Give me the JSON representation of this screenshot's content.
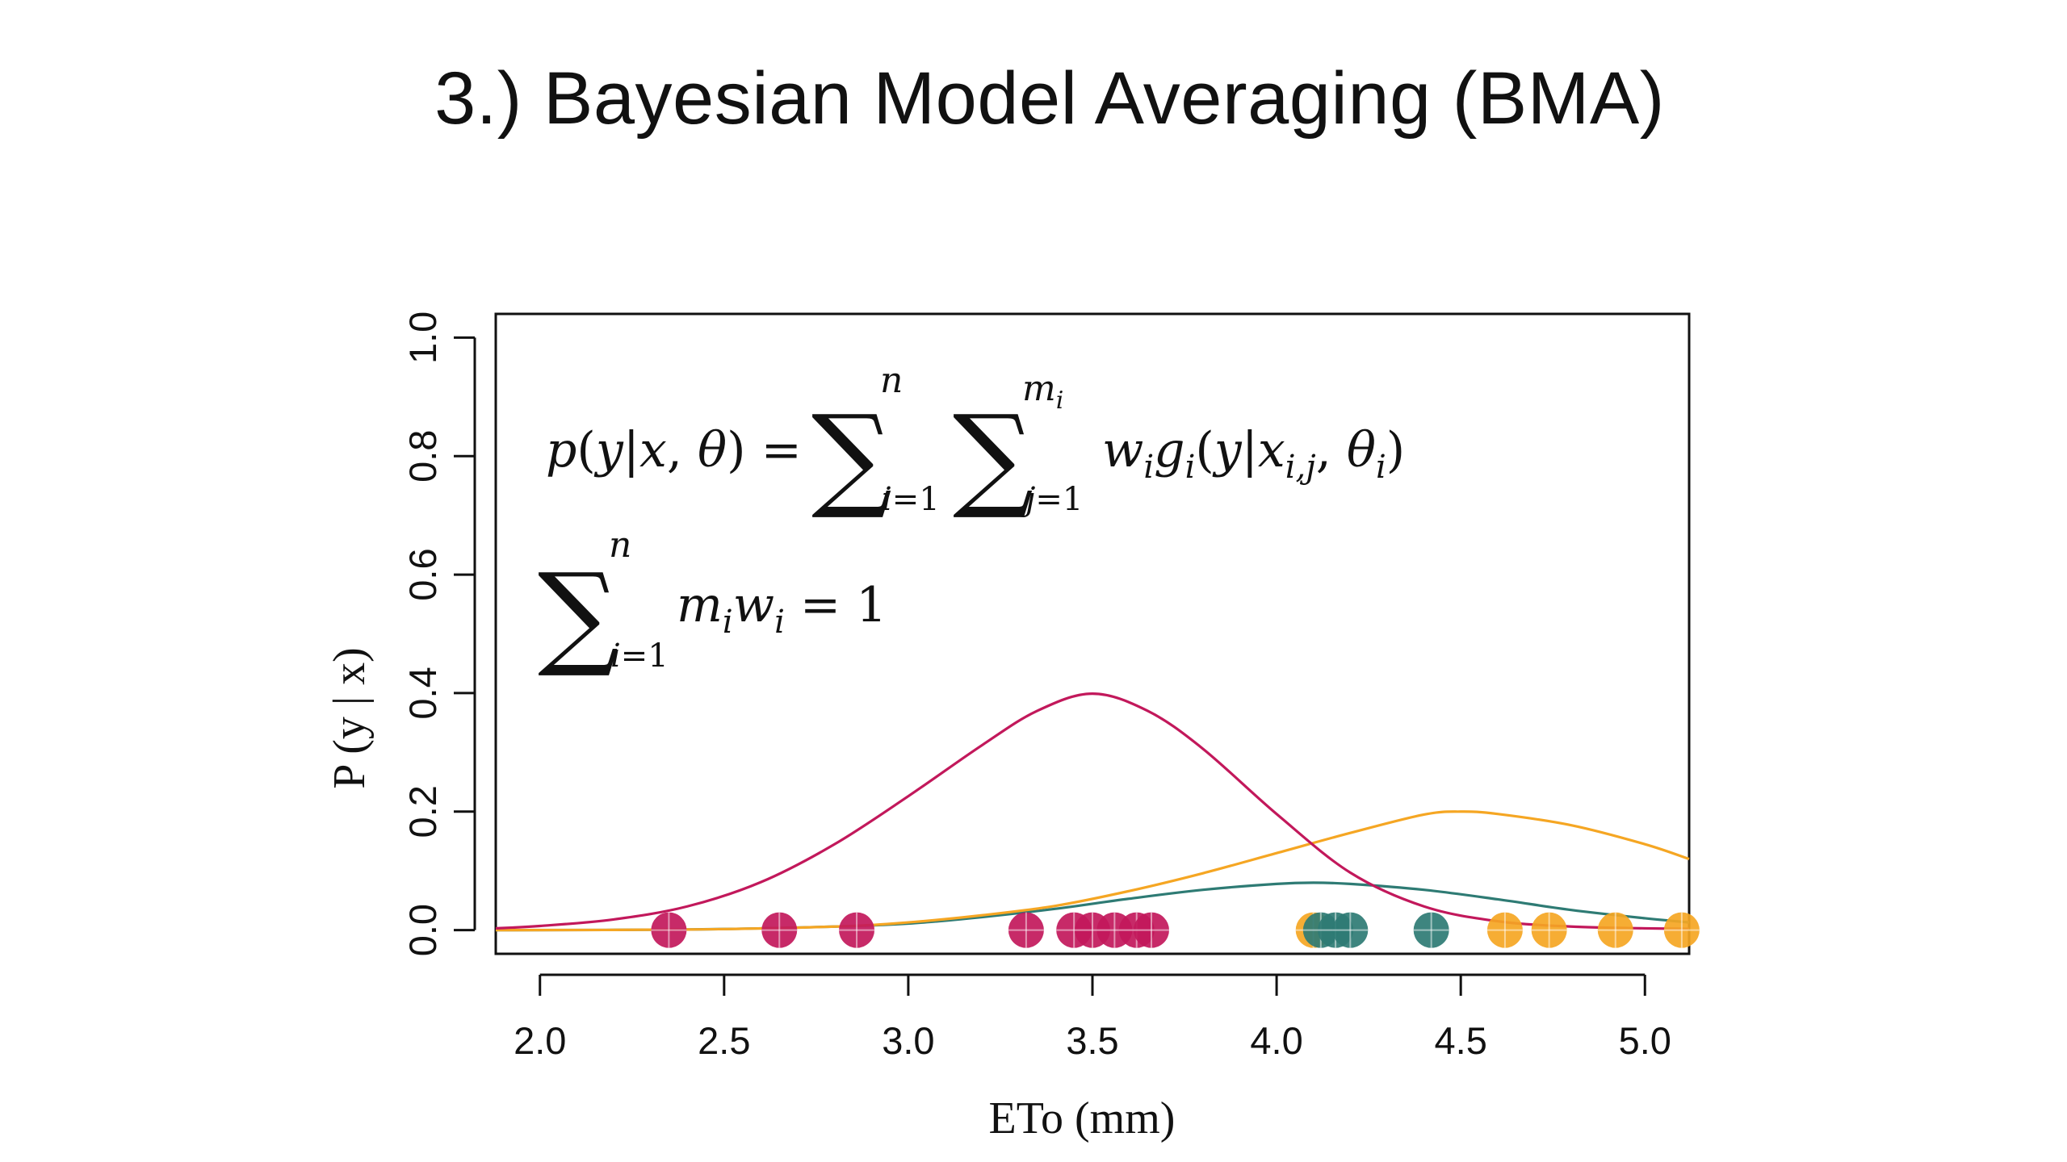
{
  "title": "3.) Bayesian Model Averaging (BMA)",
  "chart_data": {
    "type": "line",
    "xlabel": "ETo (mm)",
    "ylabel": "P (y | x)",
    "xlim": [
      1.88,
      5.12
    ],
    "ylim": [
      -0.04,
      1.04
    ],
    "xticks": [
      "2.0",
      "2.5",
      "3.0",
      "3.5",
      "4.0",
      "4.5",
      "5.0"
    ],
    "yticks": [
      "0.0",
      "0.2",
      "0.4",
      "0.6",
      "0.8",
      "1.0"
    ],
    "grid": false,
    "legend": "none",
    "formula_1": "p(y|x,θ) = Σ_{i=1}^{n} Σ_{j=1}^{m_i} w_i g_i(y|x_{i,j},θ_i)",
    "formula_2": "Σ_{i=1}^{n} m_i w_i = 1",
    "series": [
      {
        "color": "#c2185b",
        "x": [
          1.88,
          2.0,
          2.2,
          2.4,
          2.6,
          2.8,
          3.0,
          3.2,
          3.35,
          3.5,
          3.65,
          3.8,
          4.0,
          4.2,
          4.4,
          4.6,
          4.8,
          5.0,
          5.12
        ],
        "values": [
          0.003,
          0.007,
          0.018,
          0.04,
          0.081,
          0.145,
          0.226,
          0.312,
          0.37,
          0.399,
          0.37,
          0.306,
          0.196,
          0.097,
          0.04,
          0.015,
          0.006,
          0.003,
          0.002
        ],
        "points": [
          2.35,
          2.65,
          2.86,
          3.32,
          3.45,
          3.5,
          3.56,
          3.62,
          3.66
        ]
      },
      {
        "color": "#f5a623",
        "x": [
          1.88,
          2.4,
          2.8,
          3.0,
          3.2,
          3.4,
          3.6,
          3.8,
          4.0,
          4.2,
          4.4,
          4.5,
          4.6,
          4.8,
          5.0,
          5.12
        ],
        "values": [
          0.0,
          0.001,
          0.006,
          0.013,
          0.025,
          0.041,
          0.066,
          0.096,
          0.13,
          0.164,
          0.195,
          0.2,
          0.196,
          0.177,
          0.145,
          0.12
        ],
        "points": [
          4.1,
          4.62,
          4.74,
          4.92,
          5.1
        ]
      },
      {
        "color": "#2e7b74",
        "x": [
          1.88,
          2.4,
          2.8,
          3.0,
          3.2,
          3.4,
          3.6,
          3.8,
          4.0,
          4.1,
          4.2,
          4.4,
          4.6,
          4.8,
          5.0,
          5.12
        ],
        "values": [
          0.0,
          0.001,
          0.006,
          0.011,
          0.022,
          0.036,
          0.053,
          0.068,
          0.078,
          0.08,
          0.078,
          0.068,
          0.052,
          0.034,
          0.02,
          0.013
        ],
        "points": [
          4.12,
          4.16,
          4.2,
          4.42
        ]
      }
    ]
  }
}
